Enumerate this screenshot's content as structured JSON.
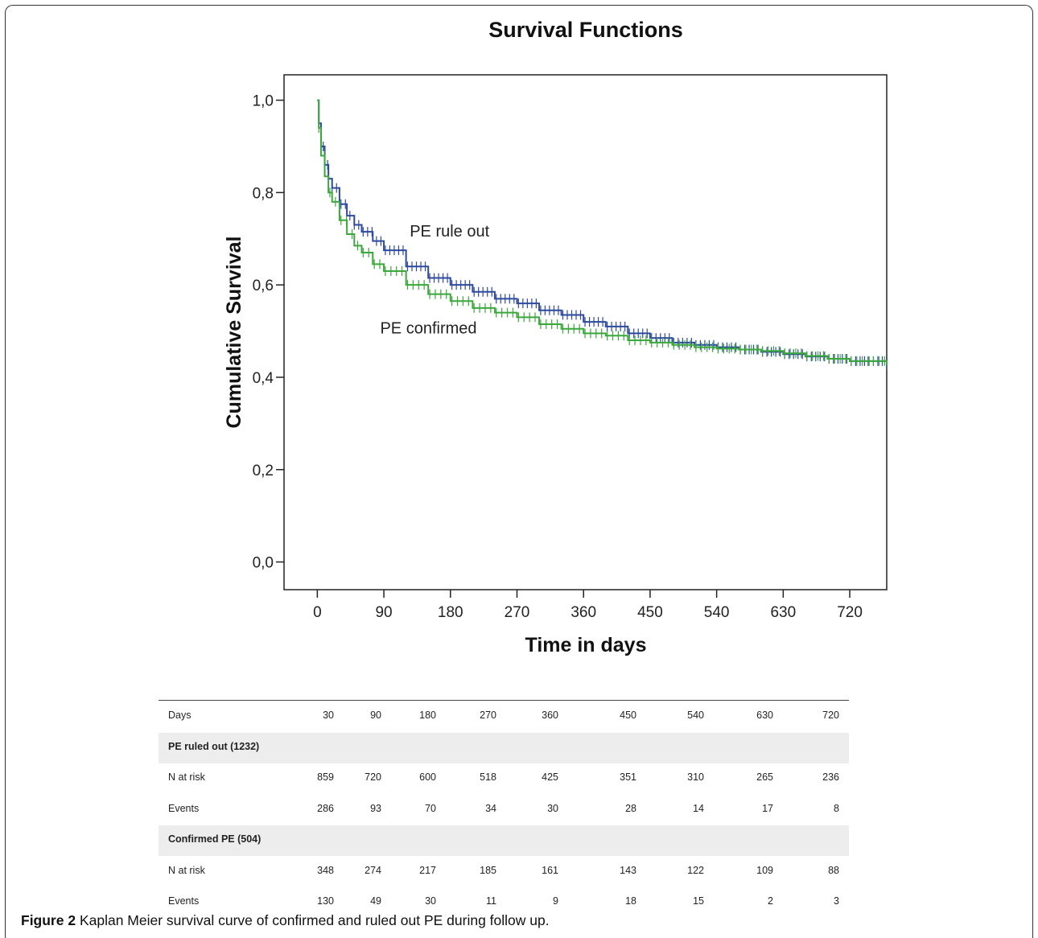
{
  "chart_data": {
    "type": "line",
    "title": "Survival Functions",
    "xlabel": "Time in days",
    "ylabel": "Cumulative Survival",
    "xlim": [
      -45,
      770
    ],
    "ylim": [
      -0.06,
      1.055
    ],
    "xticks": [
      0,
      90,
      180,
      270,
      360,
      450,
      540,
      630,
      720
    ],
    "xtick_labels": [
      "0",
      "90",
      "180",
      "270",
      "360",
      "450",
      "540",
      "630",
      "720"
    ],
    "yticks": [
      0.0,
      0.2,
      0.4,
      0.6,
      0.8,
      1.0
    ],
    "ytick_labels": [
      "0,0",
      "0,2",
      "0,4",
      "0,6",
      "0,8",
      "1,0"
    ],
    "grid": false,
    "censor_markers": true,
    "series": [
      {
        "name": "PE rule out",
        "color": "#2e4a9e",
        "x": [
          0,
          2,
          5,
          10,
          15,
          20,
          30,
          40,
          50,
          60,
          75,
          90,
          120,
          150,
          180,
          210,
          240,
          270,
          300,
          330,
          360,
          390,
          420,
          450,
          480,
          510,
          540,
          570,
          600,
          630,
          660,
          690,
          720,
          770
        ],
        "y": [
          1.0,
          0.95,
          0.9,
          0.86,
          0.83,
          0.81,
          0.775,
          0.75,
          0.73,
          0.715,
          0.695,
          0.675,
          0.64,
          0.615,
          0.6,
          0.585,
          0.57,
          0.56,
          0.545,
          0.535,
          0.52,
          0.51,
          0.495,
          0.485,
          0.475,
          0.47,
          0.465,
          0.46,
          0.455,
          0.45,
          0.445,
          0.44,
          0.435,
          0.425
        ]
      },
      {
        "name": "PE confirmed",
        "color": "#3aa83a",
        "x": [
          0,
          2,
          5,
          10,
          15,
          20,
          30,
          40,
          50,
          60,
          75,
          90,
          120,
          150,
          180,
          210,
          240,
          270,
          300,
          330,
          360,
          390,
          420,
          450,
          480,
          510,
          540,
          570,
          600,
          630,
          660,
          690,
          720,
          770
        ],
        "y": [
          1.0,
          0.94,
          0.88,
          0.835,
          0.8,
          0.78,
          0.74,
          0.71,
          0.685,
          0.67,
          0.645,
          0.63,
          0.6,
          0.58,
          0.565,
          0.55,
          0.54,
          0.53,
          0.515,
          0.505,
          0.495,
          0.49,
          0.48,
          0.475,
          0.47,
          0.465,
          0.462,
          0.46,
          0.457,
          0.452,
          0.446,
          0.44,
          0.435,
          0.425
        ]
      }
    ],
    "annotations": [
      {
        "text": "PE rule out",
        "x": 125,
        "y": 0.705
      },
      {
        "text": "PE confirmed",
        "x": 85,
        "y": 0.495
      }
    ]
  },
  "risk_table": {
    "days_label": "Days",
    "days": [
      "30",
      "90",
      "180",
      "270",
      "360",
      "450",
      "540",
      "630",
      "720"
    ],
    "groups": [
      {
        "title": "PE ruled out (1232)",
        "rows": [
          {
            "label": "N at risk",
            "values": [
              "859",
              "720",
              "600",
              "518",
              "425",
              "351",
              "310",
              "265",
              "236"
            ]
          },
          {
            "label": "Events",
            "values": [
              "286",
              "93",
              "70",
              "34",
              "30",
              "28",
              "14",
              "17",
              "8"
            ]
          }
        ]
      },
      {
        "title": "Confirmed PE (504)",
        "rows": [
          {
            "label": "N at risk",
            "values": [
              "348",
              "274",
              "217",
              "185",
              "161",
              "143",
              "122",
              "109",
              "88"
            ]
          },
          {
            "label": "Events",
            "values": [
              "130",
              "49",
              "30",
              "11",
              "9",
              "18",
              "15",
              "2",
              "3"
            ]
          }
        ]
      }
    ]
  },
  "caption": {
    "label": "Figure 2",
    "text": "Kaplan Meier survival curve of confirmed and ruled out PE during follow up."
  }
}
